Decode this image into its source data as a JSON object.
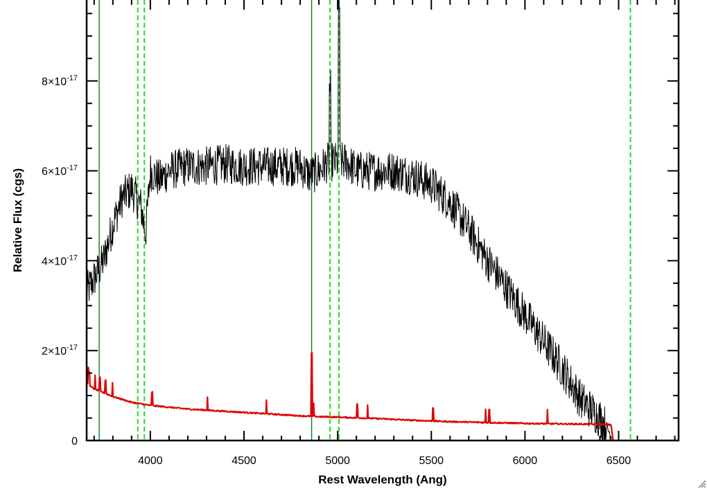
{
  "chart_data": {
    "type": "line",
    "title": "",
    "xlabel": "Rest Wavelength (Ang)",
    "ylabel": "Relative Flux (cgs)",
    "xlim": [
      3660,
      6820
    ],
    "ylim": [
      0,
      9.8e-17
    ],
    "x_ticks": [
      {
        "value": 4000,
        "label": "4000"
      },
      {
        "value": 4500,
        "label": "4500"
      },
      {
        "value": 5000,
        "label": "5000"
      },
      {
        "value": 5500,
        "label": "5500"
      },
      {
        "value": 6000,
        "label": "6000"
      },
      {
        "value": 6500,
        "label": "6500"
      }
    ],
    "y_ticks": [
      {
        "value": 0,
        "label": "0",
        "exp": ""
      },
      {
        "value": 2e-17,
        "label": "2×10",
        "exp": "-17"
      },
      {
        "value": 4e-17,
        "label": "4×10",
        "exp": "-17"
      },
      {
        "value": 6e-17,
        "label": "6×10",
        "exp": "-17"
      },
      {
        "value": 8e-17,
        "label": "8×10",
        "exp": "-17"
      }
    ],
    "grid": false,
    "series": [
      {
        "color": "#000000",
        "x": [
          3660,
          3700,
          3750,
          3800,
          3850,
          3900,
          3950,
          3975,
          4000,
          4050,
          4100,
          4200,
          4300,
          4400,
          4500,
          4600,
          4700,
          4800,
          4850,
          4900,
          4950,
          5000,
          5050,
          5100,
          5200,
          5300,
          5400,
          5500,
          5600,
          5700,
          5800,
          5900,
          6000,
          6100,
          6200,
          6300,
          6400,
          6450,
          6470
        ],
        "values": [
          3.3e-17,
          3.6e-17,
          4e-17,
          4.8e-17,
          5.4e-17,
          5.6e-17,
          5.2e-17,
          4.6e-17,
          6e-17,
          5.8e-17,
          6e-17,
          6.1e-17,
          6.1e-17,
          6.15e-17,
          6.1e-17,
          6.1e-17,
          6.1e-17,
          6.1e-17,
          5.9e-17,
          6e-17,
          6.2e-17,
          6.2e-17,
          6.2e-17,
          6e-17,
          6e-17,
          6e-17,
          5.9e-17,
          5.7e-17,
          5.3e-17,
          4.7e-17,
          4e-17,
          3.4e-17,
          2.8e-17,
          2.2e-17,
          1.6e-17,
          9e-18,
          5e-18,
          2e-18,
          0.0
        ]
      },
      {
        "color": "#e00000",
        "x": [
          3660,
          3700,
          3800,
          3900,
          4000,
          4200,
          4400,
          4600,
          4800,
          4900,
          5000,
          5200,
          5400,
          5600,
          5800,
          6000,
          6200,
          6400,
          6460,
          6470,
          6820
        ],
        "values": [
          1.25e-17,
          1.15e-17,
          9.8e-18,
          8.5e-18,
          7.8e-18,
          7e-18,
          6.5e-18,
          6e-18,
          5.5e-18,
          5.3e-18,
          5.2e-18,
          4.9e-18,
          4.5e-18,
          4.2e-18,
          4e-18,
          3.8e-18,
          3.7e-18,
          3.6e-18,
          3.5e-18,
          0.0,
          0.0
        ]
      }
    ],
    "vertical_lines": [
      {
        "x": 3727,
        "style": "solid",
        "color": "#0a7a20"
      },
      {
        "x": 3933,
        "style": "dashed",
        "color": "#22dd22"
      },
      {
        "x": 3968,
        "style": "dashed",
        "color": "#22dd22"
      },
      {
        "x": 4861,
        "style": "solid",
        "color": "#0a7a20"
      },
      {
        "x": 4959,
        "style": "dashed",
        "color": "#22dd22"
      },
      {
        "x": 5007,
        "style": "dashed",
        "color": "#22dd22"
      },
      {
        "x": 6563,
        "style": "dashed",
        "color": "#22dd22"
      }
    ]
  }
}
